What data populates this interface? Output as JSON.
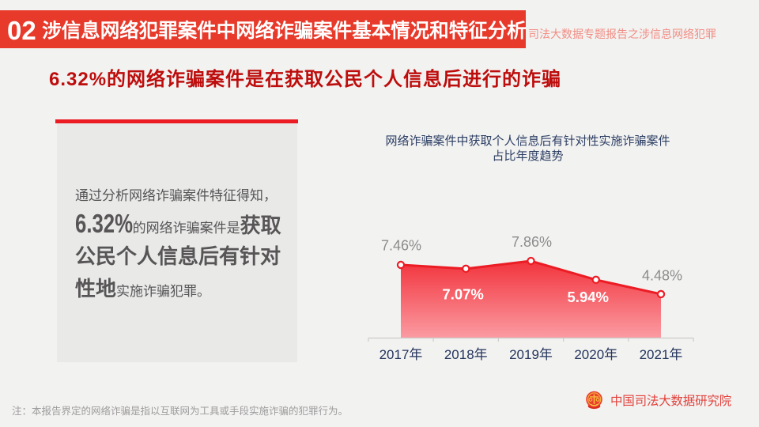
{
  "header": {
    "section_number": "02",
    "title": "涉信息网络犯罪案件中网络诈骗案件基本情况和特征分析",
    "side_note": "司法大数据专题报告之涉信息网络犯罪",
    "banner_color": "#E73A2B"
  },
  "subtitle": "6.32%的网络诈骗案件是在获取公民个人信息后进行的诈骗",
  "panel": {
    "lines": [
      {
        "parts": [
          {
            "text": "通过分析网络诈骗案件特征得知，",
            "style": "small"
          }
        ]
      },
      {
        "parts": [
          {
            "text": "6.32%",
            "style": "num"
          },
          {
            "text": "的网络诈骗案件是",
            "style": "small"
          },
          {
            "text": "获取",
            "style": "big"
          }
        ]
      },
      {
        "parts": [
          {
            "text": "公民个人信息后有针对",
            "style": "big"
          }
        ]
      },
      {
        "parts": [
          {
            "text": "性地",
            "style": "big"
          },
          {
            "text": "实施诈骗犯罪。",
            "style": "small"
          }
        ]
      }
    ]
  },
  "chart_data": {
    "type": "area",
    "title": "网络诈骗案件中获取个人信息后有针对性实施诈骗案件 占比年度趋势",
    "title_lines": [
      "网络诈骗案件中获取个人信息后有针对性实施诈骗案件",
      "占比年度趋势"
    ],
    "categories": [
      "2017年",
      "2018年",
      "2019年",
      "2020年",
      "2021年"
    ],
    "values": [
      7.46,
      7.07,
      7.86,
      5.94,
      4.48
    ],
    "labels": [
      "7.46%",
      "7.07%",
      "7.86%",
      "5.94%",
      "4.48%"
    ],
    "label_position": [
      "above",
      "below",
      "above",
      "below",
      "above"
    ],
    "ylim": [
      0,
      8.5
    ],
    "grid": false,
    "legend": "none",
    "colors": {
      "line": "#EC1C24",
      "marker_fill": "#FFFFFF",
      "area_top": "#F2343D",
      "area_bottom": "#FB9BA2",
      "label_above": "#8C8C8C",
      "label_below": "#FFFFFF",
      "axis": "#CCCBCA",
      "tick_label": "#24345C"
    }
  },
  "footer": {
    "note": "注：本报告界定的网络诈骗是指以互联网为工具或手段实施诈骗的犯罪行为。",
    "brand": "中国司法大数据研究院"
  }
}
